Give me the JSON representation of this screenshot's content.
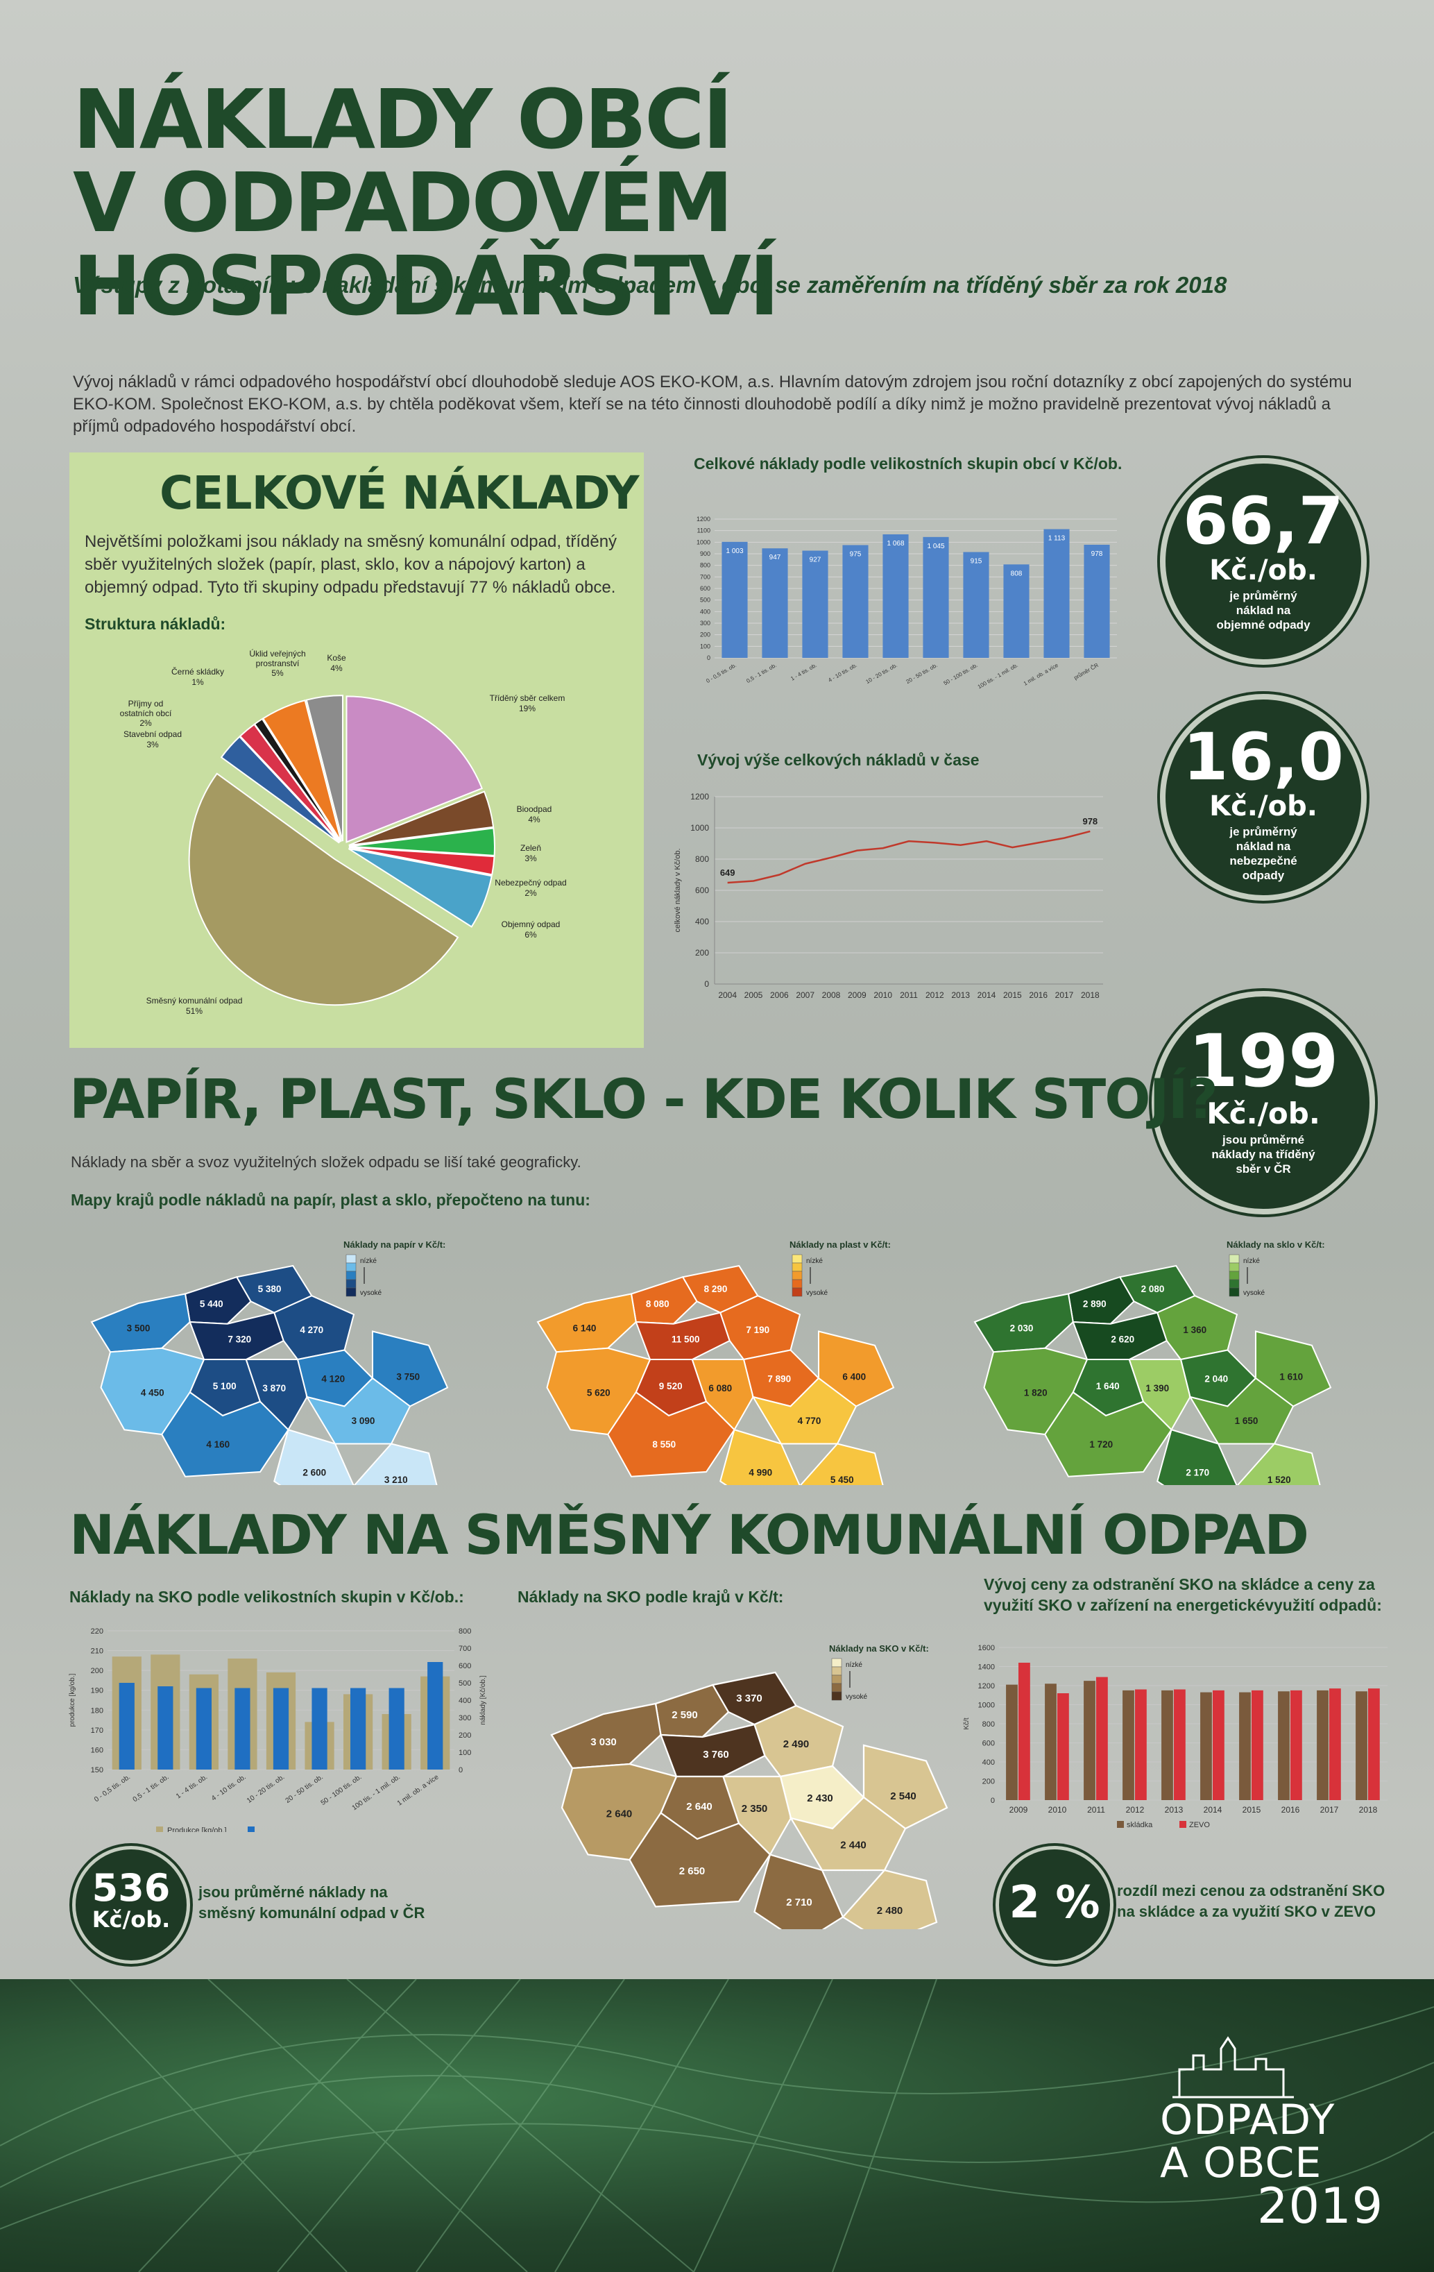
{
  "header": {
    "title_line1": "NÁKLADY OBCÍ",
    "title_line2": "V ODPADOVÉM HOSPODÁŘSTVÍ",
    "subtitle": "Výstupy z Dotazníku o nakládání s komunálním odpadem v obci se zaměřením na tříděný sběr za rok 2018",
    "intro": "Vývoj nákladů v rámci odpadového hospodářství obcí dlouhodobě sleduje AOS EKO-KOM, a.s. Hlavním datovým zdrojem jsou roční dotazníky z obcí zapojených do systému EKO-KOM. Společnost EKO-KOM, a.s. by chtěla poděkovat všem, kteří se na této činnosti dlouhodobě podílí a díky nimž je možno pravidelně prezentovat vývoj nákladů a příjmů odpadového hospodářství obcí."
  },
  "costs": {
    "title": "CELKOVÉ  NÁKLADY",
    "text": "Největšími položkami jsou náklady na směsný komunální odpad, tříděný sběr využitelných složek (papír, plast, sklo, kov a nápojový karton) a objemný odpad. Tyto tři skupiny odpadu představují 77 % nákladů obce.",
    "structure_label": "Struktura nákladů:"
  },
  "stats": {
    "s1": {
      "big": "66,7",
      "unit": "Kč./ob.",
      "cap": "je průměrný náklad na objemné odpady"
    },
    "s2": {
      "big": "16,0",
      "unit": "Kč./ob.",
      "cap": "je průměrný náklad na nebezpečné odpady"
    },
    "s3": {
      "big": "199",
      "unit": "Kč./ob.",
      "cap": "jsou průměrné náklady na tříděný sběr v ČR"
    },
    "s4": {
      "big": "536",
      "unit": "Kč/ob.",
      "cap": "jsou průměrné náklady na směsný komunální odpad v ČR"
    },
    "s5": {
      "big": "2 %",
      "cap": "rozdíl mezi cenou za odstranění SKO na skládce a za využití SKO v ZEVO"
    }
  },
  "section2": {
    "title": "PAPÍR, PLAST, SKLO - KDE KOLIK STOJÍ?",
    "text": "Náklady na sběr a svoz využitelných složek odpadu se liší také geograficky.",
    "maps_label": "Mapy krajů podle nákladů na papír, plast a sklo, přepočteno na tunu:"
  },
  "section3": {
    "title": "NÁKLADY NA SMĚSNÝ KOMUNÁLNÍ ODPAD",
    "chart1_label": "Náklady na SKO podle velikostních skupin v Kč/ob.:",
    "chart2_label": "Náklady na SKO podle krajů v Kč/t:",
    "chart3_label": "Vývoj ceny za odstranění SKO na skládce a ceny za využití SKO v zařízení na energetickévyužití odpadů:"
  },
  "maps": {
    "paper": {
      "legend_title": "Náklady na papír v Kč/t:",
      "low": "nízké",
      "high": "vysoké",
      "colors": [
        "#c9e6f7",
        "#6bbbe8",
        "#2a7fc0",
        "#1d4d85",
        "#132d5c"
      ],
      "values": [
        "5 440",
        "5 380",
        "3 500",
        "7 320",
        "4 270",
        "5 100",
        "4 120",
        "4 450",
        "3 750",
        "3 870",
        "3 090",
        "4 160",
        "2 600",
        "3 210"
      ]
    },
    "plastic": {
      "legend_title": "Náklady na plast v Kč/t:",
      "low": "nízké",
      "high": "vysoké",
      "colors": [
        "#fbe77a",
        "#f7c540",
        "#f29b2c",
        "#e66b1f",
        "#c2401a"
      ],
      "values": [
        "8 080",
        "8 290",
        "6 140",
        "11 500",
        "7 190",
        "9 520",
        "7 890",
        "5 620",
        "6 400",
        "6 080",
        "4 770",
        "8 550",
        "4 990",
        "5 450"
      ]
    },
    "glass": {
      "legend_title": "Náklady na sklo v Kč/t:",
      "low": "nízké",
      "high": "vysoké",
      "colors": [
        "#d6ebb0",
        "#9ccc65",
        "#64a33d",
        "#2f7430",
        "#174a20"
      ],
      "values": [
        "2 890",
        "2 080",
        "2 030",
        "2 620",
        "1 360",
        "1 640",
        "2 040",
        "1 820",
        "1 610",
        "1 390",
        "1 650",
        "1 720",
        "2 170",
        "1 520"
      ]
    },
    "sko": {
      "legend_title": "Náklady na SKO v Kč/t:",
      "low": "nízké",
      "high": "vysoké",
      "colors": [
        "#f5eec8",
        "#d8c592",
        "#b79a64",
        "#8c6b42",
        "#4e3420"
      ],
      "values": [
        "2 590",
        "3 370",
        "3 030",
        "3 760",
        "2 490",
        "2 640",
        "2 430",
        "2 640",
        "2 540",
        "2 350",
        "2 440",
        "2 650",
        "2 710",
        "2 480"
      ]
    }
  },
  "footer": {
    "logo_line1": "ODPADY",
    "logo_line2": "A OBCE",
    "logo_year": "2019"
  },
  "chart_data": [
    {
      "type": "pie",
      "title": "Struktura nákladů:",
      "categories": [
        "Tříděný sběr celkem",
        "Bioodpad",
        "Zeleň",
        "Nebezpečný odpad",
        "Objemný odpad",
        "Směsný komunální odpad",
        "Stavební odpad",
        "Příjmy od ostatních obcí",
        "Černé skládky",
        "Úklid veřejných prostranství",
        "Koše"
      ],
      "values": [
        19,
        4,
        3,
        2,
        6,
        51,
        3,
        2,
        1,
        5,
        4
      ],
      "labels": [
        "19%",
        "4%",
        "3%",
        "2%",
        "6%",
        "51%",
        "3%",
        "2%",
        "1%",
        "5%",
        "4%"
      ],
      "colors": [
        "#c98bc4",
        "#7a4a2a",
        "#2bb24c",
        "#e02b3a",
        "#4aa3c9",
        "#a59a62",
        "#2f5f9e",
        "#d9334a",
        "#1a1a1a",
        "#ec7a22",
        "#8c8c8c"
      ]
    },
    {
      "type": "bar",
      "title": "Celkové náklady podle velikostních skupin obcí v Kč/ob.",
      "categories": [
        "0 - 0,5 tis. ob.",
        "0,5 - 1 tis. ob.",
        "1 - 4 tis. ob.",
        "4 - 10 tis. ob.",
        "10 - 20 tis. ob.",
        "20 - 50 tis. ob.",
        "50 - 100 tis. ob.",
        "100 tis. - 1 mil. ob.",
        "1 mil. ob. a více",
        "průměr ČR"
      ],
      "values": [
        1003,
        947,
        927,
        975,
        1068,
        1045,
        915,
        808,
        1113,
        978
      ],
      "data_labels": [
        "1 003",
        "947",
        "927",
        "975",
        "1 068",
        "1 045",
        "915",
        "808",
        "1 113",
        "978"
      ],
      "yticks": [
        "0",
        "100",
        "200",
        "300",
        "400",
        "500",
        "600",
        "700",
        "800",
        "900",
        "1000",
        "1100",
        "1200"
      ],
      "ylim": [
        0,
        1200
      ],
      "color": "#4f83c9"
    },
    {
      "type": "line",
      "title": "Vývoj výše celkových nákladů v čase",
      "ylabel": "celkové náklady v Kč/ob.",
      "x": [
        "2004",
        "2005",
        "2006",
        "2007",
        "2008",
        "2009",
        "2010",
        "2011",
        "2012",
        "2013",
        "2014",
        "2015",
        "2016",
        "2017",
        "2018"
      ],
      "values": [
        649,
        660,
        700,
        770,
        810,
        855,
        870,
        915,
        905,
        890,
        915,
        875,
        905,
        935,
        978
      ],
      "point_labels": {
        "2004": "649",
        "2018": "978"
      },
      "yticks": [
        "0",
        "200",
        "400",
        "600",
        "800",
        "1000",
        "1200"
      ],
      "ylim": [
        0,
        1200
      ],
      "color": "#c0392b"
    },
    {
      "type": "bar",
      "title": "Náklady na SKO podle velikostních skupin v Kč/ob.:",
      "categories": [
        "0 - 0,5 tis. ob.",
        "0,5 - 1 tis. ob.",
        "1 - 4 tis. ob.",
        "4 - 10 tis. ob.",
        "10 - 20 tis. ob.",
        "20 - 50 tis. ob.",
        "50 - 100 tis. ob.",
        "100 tis. - 1 mil. ob.",
        "1 mil. ob. a více"
      ],
      "series": [
        {
          "name": "Produkce [kg/ob.]",
          "axis": "left",
          "values": [
            207,
            208,
            198,
            206,
            199,
            174,
            188,
            178,
            197
          ],
          "color": "#b5a878"
        },
        {
          "name": "",
          "axis": "right",
          "values": [
            500,
            480,
            470,
            470,
            470,
            470,
            470,
            470,
            620
          ],
          "color": "#1f6fc2"
        }
      ],
      "ylabel_left": "produkce [kg/ob.]",
      "ylabel_right": "náklady [Kč/ob.]",
      "yticks_left": [
        "150",
        "160",
        "170",
        "180",
        "190",
        "200",
        "210",
        "220"
      ],
      "yticks_right": [
        "0",
        "100",
        "200",
        "300",
        "400",
        "500",
        "600",
        "700",
        "800"
      ],
      "ylim_left": [
        150,
        220
      ],
      "ylim_right": [
        0,
        800
      ]
    },
    {
      "type": "bar",
      "title": "Vývoj ceny za odstranění SKO na skládce a ceny za využití SKO v zařízení na energetickévyužití odpadů:",
      "categories": [
        "2009",
        "2010",
        "2011",
        "2012",
        "2013",
        "2014",
        "2015",
        "2016",
        "2017",
        "2018"
      ],
      "series": [
        {
          "name": "skládka",
          "values": [
            1210,
            1220,
            1250,
            1150,
            1150,
            1130,
            1130,
            1140,
            1150,
            1140
          ],
          "color": "#7a5a3c"
        },
        {
          "name": "ZEVO",
          "values": [
            1440,
            1120,
            1290,
            1160,
            1160,
            1150,
            1150,
            1150,
            1170,
            1170
          ],
          "color": "#d8323a"
        }
      ],
      "ylabel": "Kč/t",
      "yticks": [
        "0",
        "200",
        "400",
        "600",
        "800",
        "1000",
        "1200",
        "1400",
        "1600"
      ],
      "ylim": [
        0,
        1600
      ]
    }
  ]
}
